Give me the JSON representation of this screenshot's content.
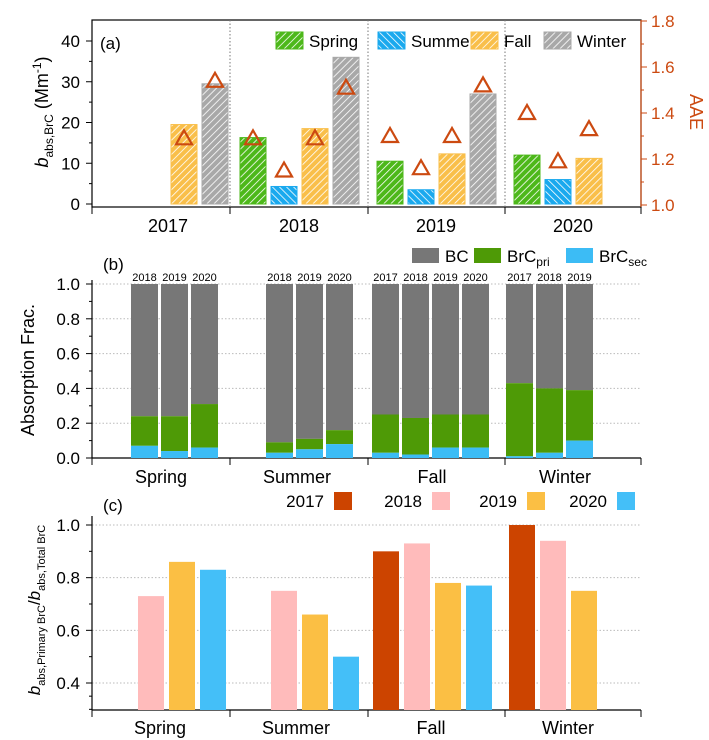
{
  "chart_data": [
    {
      "panel": "(a)",
      "type": "bar",
      "y_axis": {
        "label_main": "b",
        "label_sub": "abs,BrC",
        "label_unit_open": " (Mm",
        "label_sup": "-1",
        "label_unit_close": ")",
        "ylim": [
          0,
          45
        ],
        "ticks": [
          "0",
          "10",
          "20",
          "30",
          "40"
        ]
      },
      "y2_axis": {
        "label": "AAE",
        "ylim": [
          1.0,
          1.8
        ],
        "ticks": [
          "1.0",
          "1.2",
          "1.4",
          "1.6",
          "1.8"
        ]
      },
      "categories": [
        "2017",
        "2018",
        "2019",
        "2020"
      ],
      "series": [
        {
          "name": "Spring",
          "color": "#4db81a",
          "values": [
            null,
            16.3,
            10.5,
            12.0
          ]
        },
        {
          "name": "Summer",
          "color": "#1aa9ee",
          "values": [
            null,
            4.3,
            3.5,
            6.0
          ]
        },
        {
          "name": "Fall",
          "color": "#f9bf4a",
          "values": [
            19.5,
            18.5,
            12.3,
            11.2
          ]
        },
        {
          "name": "Winter",
          "color": "#a8a8a8",
          "values": [
            29.5,
            36.0,
            27.0,
            null
          ]
        }
      ],
      "aae": {
        "color": "#cc4a11",
        "values": [
          [
            null,
            null,
            1.29,
            1.54
          ],
          [
            1.29,
            1.15,
            1.29,
            1.51
          ],
          [
            1.3,
            1.16,
            1.3,
            1.52
          ],
          [
            1.4,
            1.19,
            1.33,
            null
          ]
        ]
      }
    },
    {
      "panel": "(b)",
      "type": "bar",
      "stacked": true,
      "y_axis": {
        "label": "Absorption Frac.",
        "ylim": [
          0,
          1.0
        ],
        "ticks": [
          "0.0",
          "0.2",
          "0.4",
          "0.6",
          "0.8",
          "1.0"
        ]
      },
      "categories": [
        "Spring",
        "Summer",
        "Fall",
        "Winter"
      ],
      "legend": [
        {
          "main": "BC",
          "sub": "",
          "color": "#777777"
        },
        {
          "main": "BrC",
          "sub": "pri",
          "color": "#4e9a06"
        },
        {
          "main": "BrC",
          "sub": "sec",
          "color": "#3cbcf5"
        }
      ],
      "groups": [
        {
          "season": "Spring",
          "bars": [
            {
              "year": "2018",
              "sec": 0.07,
              "pri_top": 0.24
            },
            {
              "year": "2019",
              "sec": 0.04,
              "pri_top": 0.24
            },
            {
              "year": "2020",
              "sec": 0.06,
              "pri_top": 0.31
            }
          ]
        },
        {
          "season": "Summer",
          "bars": [
            {
              "year": "2018",
              "sec": 0.03,
              "pri_top": 0.09
            },
            {
              "year": "2019",
              "sec": 0.05,
              "pri_top": 0.11
            },
            {
              "year": "2020",
              "sec": 0.08,
              "pri_top": 0.16
            }
          ]
        },
        {
          "season": "Fall",
          "bars": [
            {
              "year": "2017",
              "sec": 0.03,
              "pri_top": 0.25
            },
            {
              "year": "2018",
              "sec": 0.02,
              "pri_top": 0.23
            },
            {
              "year": "2019",
              "sec": 0.06,
              "pri_top": 0.25
            },
            {
              "year": "2020",
              "sec": 0.06,
              "pri_top": 0.25
            }
          ]
        },
        {
          "season": "Winter",
          "bars": [
            {
              "year": "2017",
              "sec": 0.01,
              "pri_top": 0.43
            },
            {
              "year": "2018",
              "sec": 0.03,
              "pri_top": 0.4
            },
            {
              "year": "2019",
              "sec": 0.1,
              "pri_top": 0.39
            }
          ]
        }
      ]
    },
    {
      "panel": "(c)",
      "type": "bar",
      "y_axis": {
        "label_a": "b",
        "label_a_sub": "abs,Primary BrC",
        "label_slash": "/",
        "label_b": "b",
        "label_b_sub": "abs,Total BrC",
        "ylim": [
          0.3,
          1.0
        ],
        "ticks": [
          "0.4",
          "0.6",
          "0.8",
          "1.0"
        ]
      },
      "categories": [
        "Spring",
        "Summer",
        "Fall",
        "Winter"
      ],
      "series": [
        {
          "name": "2017",
          "color": "#cc4400",
          "values": [
            null,
            null,
            0.9,
            1.0
          ]
        },
        {
          "name": "2018",
          "color": "#ffbbbb",
          "values": [
            0.73,
            0.75,
            0.93,
            0.94
          ]
        },
        {
          "name": "2019",
          "color": "#fbbf44",
          "values": [
            0.86,
            0.66,
            0.78,
            0.75
          ]
        },
        {
          "name": "2020",
          "color": "#44bff8",
          "values": [
            0.83,
            0.5,
            0.77,
            null
          ]
        }
      ]
    }
  ]
}
